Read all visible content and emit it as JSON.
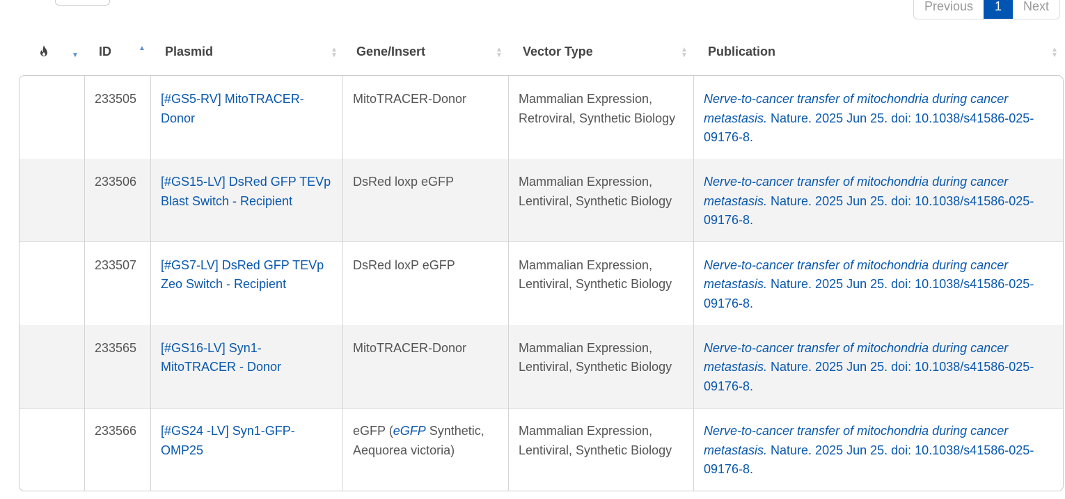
{
  "pagination": {
    "previous": "Previous",
    "current": "1",
    "next": "Next"
  },
  "columns": {
    "popularity_icon": "fire-icon",
    "id": "ID",
    "plasmid": "Plasmid",
    "gene": "Gene/Insert",
    "vector": "Vector Type",
    "publication": "Publication"
  },
  "rows": [
    {
      "id": "233505",
      "plasmid": "[#GS5-RV] MitoTRACER-Donor",
      "gene": "MitoTRACER-Donor",
      "gene_italic": "",
      "gene_rest": "",
      "vector": "Mammalian Expression, Retroviral, Synthetic Biology",
      "pub_title": "Nerve-to-cancer transfer of mitochondria during cancer metastasis.",
      "pub_rest": " Nature. 2025 Jun 25. doi: 10.1038/s41586-025-09176-8."
    },
    {
      "id": "233506",
      "plasmid": "[#GS15-LV] DsRed GFP TEVp Blast Switch - Recipient",
      "gene": "DsRed loxp eGFP",
      "gene_italic": "",
      "gene_rest": "",
      "vector": "Mammalian Expression, Lentiviral, Synthetic Biology",
      "pub_title": "Nerve-to-cancer transfer of mitochondria during cancer metastasis.",
      "pub_rest": " Nature. 2025 Jun 25. doi: 10.1038/s41586-025-09176-8."
    },
    {
      "id": "233507",
      "plasmid": "[#GS7-LV] DsRed GFP TEVp Zeo Switch - Recipient",
      "gene": "DsRed loxP eGFP",
      "gene_italic": "",
      "gene_rest": "",
      "vector": "Mammalian Expression, Lentiviral, Synthetic Biology",
      "pub_title": "Nerve-to-cancer transfer of mitochondria during cancer metastasis.",
      "pub_rest": " Nature. 2025 Jun 25. doi: 10.1038/s41586-025-09176-8."
    },
    {
      "id": "233565",
      "plasmid": "[#GS16-LV] Syn1-MitoTRACER - Donor",
      "gene": "MitoTRACER-Donor",
      "gene_italic": "",
      "gene_rest": "",
      "vector": "Mammalian Expression, Lentiviral, Synthetic Biology",
      "pub_title": "Nerve-to-cancer transfer of mitochondria during cancer metastasis.",
      "pub_rest": " Nature. 2025 Jun 25. doi: 10.1038/s41586-025-09176-8."
    },
    {
      "id": "233566",
      "plasmid": "[#GS24 -LV] Syn1-GFP-OMP25",
      "gene": "eGFP (",
      "gene_italic": "eGFP",
      "gene_rest": " Synthetic, Aequorea victoria)",
      "vector": "Mammalian Expression, Lentiviral, Synthetic Biology",
      "pub_title": "Nerve-to-cancer transfer of mitochondria during cancer metastasis.",
      "pub_rest": " Nature. 2025 Jun 25. doi: 10.1038/s41586-025-09176-8."
    }
  ]
}
